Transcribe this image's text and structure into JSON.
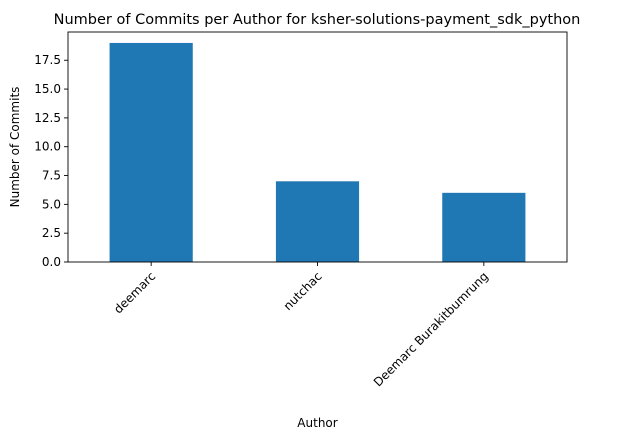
{
  "chart_data": {
    "type": "bar",
    "title": "Number of Commits per Author for ksher-solutions-payment_sdk_python",
    "xlabel": "Author",
    "ylabel": "Number of Commits",
    "categories": [
      "deemarc",
      "nutchac",
      "Deemarc Burakitbumrung"
    ],
    "values": [
      19,
      7,
      6
    ],
    "ylim": [
      0,
      19.95
    ],
    "yticks": [
      "0.0",
      "2.5",
      "5.0",
      "7.5",
      "10.0",
      "12.5",
      "15.0",
      "17.5"
    ],
    "grid": false,
    "bar_color": "#1f77b4"
  }
}
